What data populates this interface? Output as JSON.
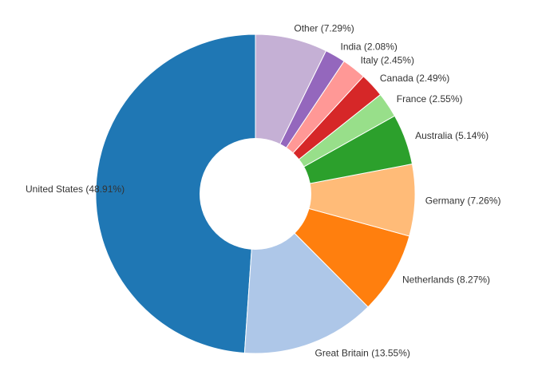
{
  "chart_data": {
    "type": "pie",
    "donut": true,
    "title": "",
    "legend": "none",
    "series": [
      {
        "values": [
          {
            "label": "United States",
            "value": 48.91,
            "display": "United States (48.91%)",
            "color": "#1f77b4"
          },
          {
            "label": "Great Britain",
            "value": 13.55,
            "display": "Great Britain (13.55%)",
            "color": "#aec7e8"
          },
          {
            "label": "Netherlands",
            "value": 8.27,
            "display": "Netherlands (8.27%)",
            "color": "#ff7f0e"
          },
          {
            "label": "Germany",
            "value": 7.26,
            "display": "Germany (7.26%)",
            "color": "#ffbb78"
          },
          {
            "label": "Australia",
            "value": 5.14,
            "display": "Australia (5.14%)",
            "color": "#2ca02c"
          },
          {
            "label": "France",
            "value": 2.55,
            "display": "France (2.55%)",
            "color": "#98df8a"
          },
          {
            "label": "Canada",
            "value": 2.49,
            "display": "Canada (2.49%)",
            "color": "#d62728"
          },
          {
            "label": "Italy",
            "value": 2.45,
            "display": "Italy (2.45%)",
            "color": "#ff9896"
          },
          {
            "label": "India",
            "value": 2.08,
            "display": "India (2.08%)",
            "color": "#9467bd"
          },
          {
            "label": "Other",
            "value": 7.29,
            "display": "Other (7.29%)",
            "color": "#c5b0d5"
          }
        ]
      }
    ]
  }
}
